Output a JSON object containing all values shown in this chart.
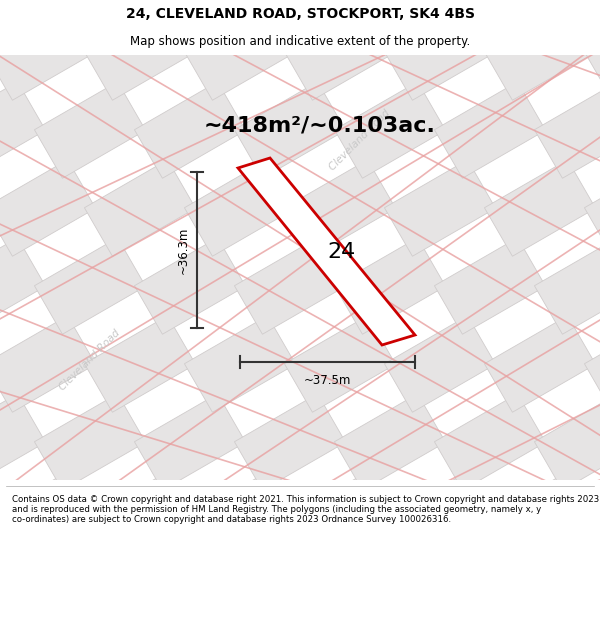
{
  "title": "24, CLEVELAND ROAD, STOCKPORT, SK4 4BS",
  "subtitle": "Map shows position and indicative extent of the property.",
  "area_text": "~418m²/~0.103ac.",
  "width_label": "~37.5m",
  "height_label": "~36.3m",
  "house_number": "24",
  "footer": "Contains OS data © Crown copyright and database right 2021. This information is subject to Crown copyright and database rights 2023 and is reproduced with the permission of HM Land Registry. The polygons (including the associated geometry, namely x, y co-ordinates) are subject to Crown copyright and database rights 2023 Ordnance Survey 100026316.",
  "map_bg": "#eeecec",
  "diamond_fill": "#e6e4e4",
  "diamond_stroke": "#d0cccc",
  "road_line_color": "#e8a0a0",
  "plot_stroke": "#cc0000",
  "plot_fill": "#ffffff",
  "measure_color": "#333333",
  "title_fontsize": 10,
  "subtitle_fontsize": 8.5,
  "area_fontsize": 16,
  "label_fontsize": 8.5,
  "number_fontsize": 16,
  "footer_fontsize": 6.2,
  "road_label_color": "#c8c8c8",
  "road_label_fontsize": 7.5
}
